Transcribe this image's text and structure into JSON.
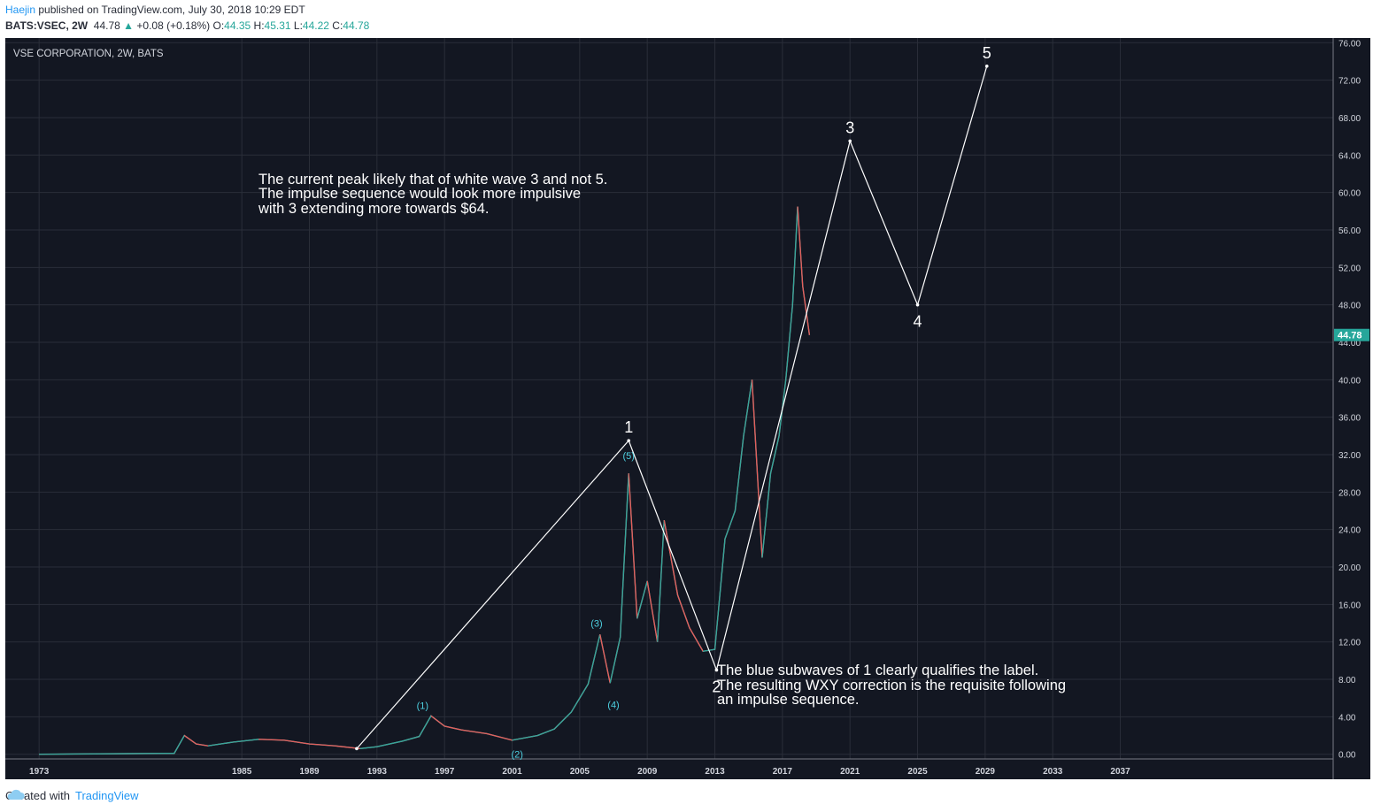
{
  "header": {
    "author": "Haejin",
    "published_text": "published on TradingView.com, July 30, 2018 10:29 EDT",
    "symbol": "BATS:VSEC, 2W",
    "last": "44.78",
    "change": "+0.08 (+0.18%)",
    "o_label": "O:",
    "o_value": "44.35",
    "h_label": "H:",
    "h_value": "45.31",
    "l_label": "L:",
    "l_value": "44.22",
    "c_label": "C:",
    "c_value": "44.78"
  },
  "chart_title": "VSE CORPORATION, 2W, BATS",
  "price_tag": "44.78",
  "annotations": {
    "top_lines": [
      "The current peak likely that of white wave 3 and not 5.",
      "The impulse sequence would look more impulsive",
      "with 3 extending more towards $64."
    ],
    "bottom_lines": [
      "The blue subwaves of 1 clearly qualifies the label.",
      "The resulting WXY correction is the requisite following",
      "an impulse sequence."
    ]
  },
  "footer": {
    "created_with": "Created with",
    "brand": "TradingView"
  },
  "colors": {
    "background": "#131722",
    "grid": "#2a2e39",
    "up": "#26a69a",
    "down": "#ef5350",
    "wave_line": "#ffffff",
    "subwave_label": "#4dd0e1"
  },
  "chart_data": {
    "type": "line",
    "title": "VSE CORPORATION, 2W, BATS",
    "xlabel": "",
    "ylabel": "",
    "ylim": [
      -0.5,
      76.5
    ],
    "xlim": [
      1971.0,
      2049.6
    ],
    "x_ticks": [
      "1973",
      "1985",
      "1989",
      "1993",
      "1997",
      "2001",
      "2005",
      "2009",
      "2013",
      "2017",
      "2021",
      "2025",
      "2029",
      "2033",
      "2037"
    ],
    "y_ticks": [
      "0.00",
      "4.00",
      "8.00",
      "12.00",
      "16.00",
      "20.00",
      "24.00",
      "28.00",
      "32.00",
      "36.00",
      "40.00",
      "44.00",
      "48.00",
      "52.00",
      "56.00",
      "60.00",
      "64.00",
      "68.00",
      "72.00",
      "76.00"
    ],
    "price_series": {
      "name": "",
      "x": [
        1973.0,
        1981.0,
        1981.6,
        1982.3,
        1983.0,
        1984.5,
        1986.0,
        1987.5,
        1989.0,
        1990.5,
        1992.0,
        1993.0,
        1994.5,
        1995.5,
        1996.2,
        1997.0,
        1998.0,
        1999.5,
        2001.0,
        2002.5,
        2003.5,
        2004.5,
        2005.5,
        2006.2,
        2006.8,
        2007.4,
        2007.9,
        2008.4,
        2009.0,
        2009.6,
        2010.0,
        2010.8,
        2011.5,
        2012.3,
        2013.0,
        2013.6,
        2014.2,
        2014.7,
        2015.2,
        2015.8,
        2016.3,
        2016.8,
        2017.2,
        2017.6,
        2017.9,
        2018.2,
        2018.6
      ],
      "y": [
        0.0,
        0.1,
        2.0,
        1.1,
        0.9,
        1.3,
        1.6,
        1.5,
        1.1,
        0.9,
        0.6,
        0.8,
        1.4,
        1.9,
        4.1,
        3.0,
        2.6,
        2.2,
        1.5,
        2.0,
        2.7,
        4.5,
        7.5,
        12.8,
        7.6,
        12.5,
        30.0,
        14.5,
        18.5,
        12.0,
        25.0,
        17.0,
        13.5,
        11.0,
        11.2,
        23.0,
        26.0,
        34.0,
        40.0,
        21.0,
        30.0,
        34.0,
        40.0,
        48.0,
        58.5,
        50.0,
        44.78
      ]
    },
    "wave_series": {
      "name": "",
      "x": [
        1991.8,
        2007.9,
        2013.1,
        2021.0,
        2025.0,
        2029.1
      ],
      "y": [
        0.6,
        33.5,
        9.0,
        65.5,
        48.0,
        73.5
      ]
    },
    "wave_labels": [
      {
        "text": "1",
        "x": 2007.9,
        "y": 33.5,
        "pos": "above"
      },
      {
        "text": "2",
        "x": 2013.1,
        "y": 9.0,
        "pos": "below"
      },
      {
        "text": "3",
        "x": 2021.0,
        "y": 65.5,
        "pos": "above"
      },
      {
        "text": "4",
        "x": 2025.0,
        "y": 48.0,
        "pos": "below"
      },
      {
        "text": "5",
        "x": 2029.1,
        "y": 73.5,
        "pos": "above"
      }
    ],
    "subwave_labels": [
      {
        "text": "(1)",
        "x": 1995.7,
        "y": 5.2
      },
      {
        "text": "(2)",
        "x": 2001.3,
        "y": 0.0
      },
      {
        "text": "(3)",
        "x": 2006.0,
        "y": 14.0
      },
      {
        "text": "(4)",
        "x": 2007.0,
        "y": 5.3
      },
      {
        "text": "(5)",
        "x": 2007.9,
        "y": 31.9
      }
    ],
    "current_price": 44.78
  }
}
